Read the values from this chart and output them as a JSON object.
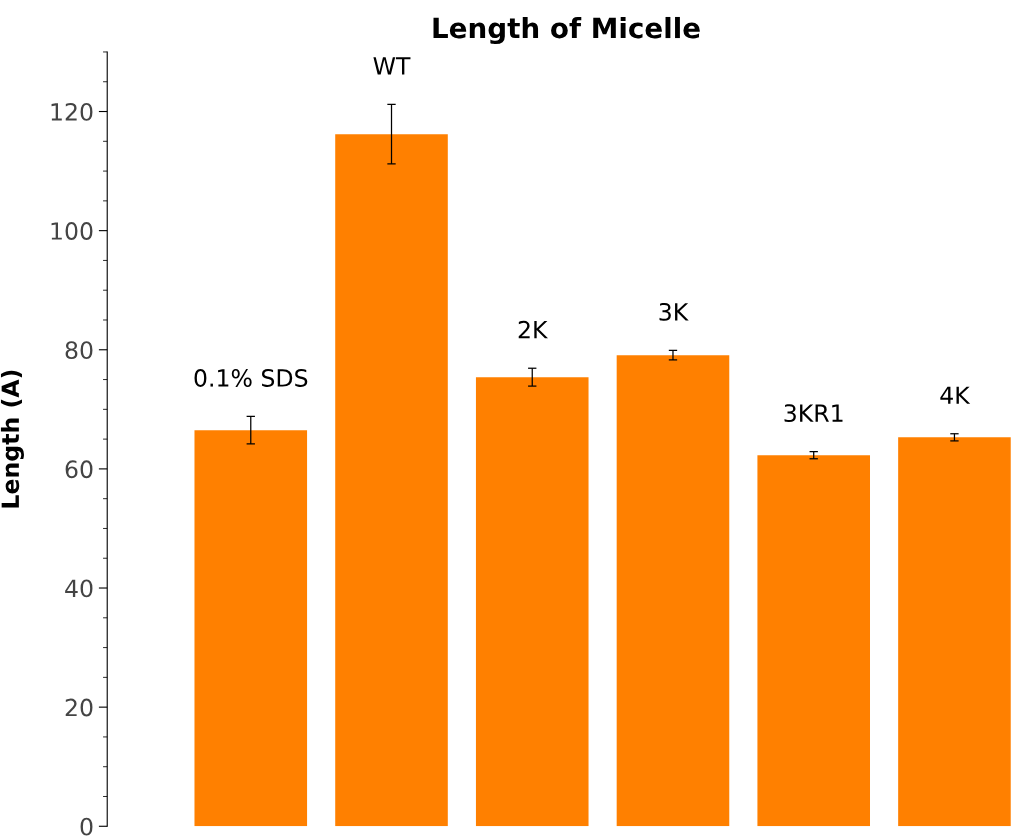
{
  "chart_data": {
    "type": "bar",
    "title": "Length of Micelle",
    "ylabel": "Length (A)",
    "categories": [
      "0.1% SDS",
      "WT",
      "2K",
      "3K",
      "3KR1",
      "4K"
    ],
    "values": [
      66.5,
      116.2,
      75.4,
      79.1,
      62.3,
      65.3
    ],
    "errors": [
      2.3,
      5,
      1.5,
      0.8,
      0.6,
      0.6
    ],
    "color": "#ff8000",
    "ylim": [
      0,
      130
    ],
    "yticks": [
      0,
      20,
      40,
      60,
      80,
      100,
      120
    ],
    "tick_labels": "y",
    "grid": false,
    "legend": false
  }
}
